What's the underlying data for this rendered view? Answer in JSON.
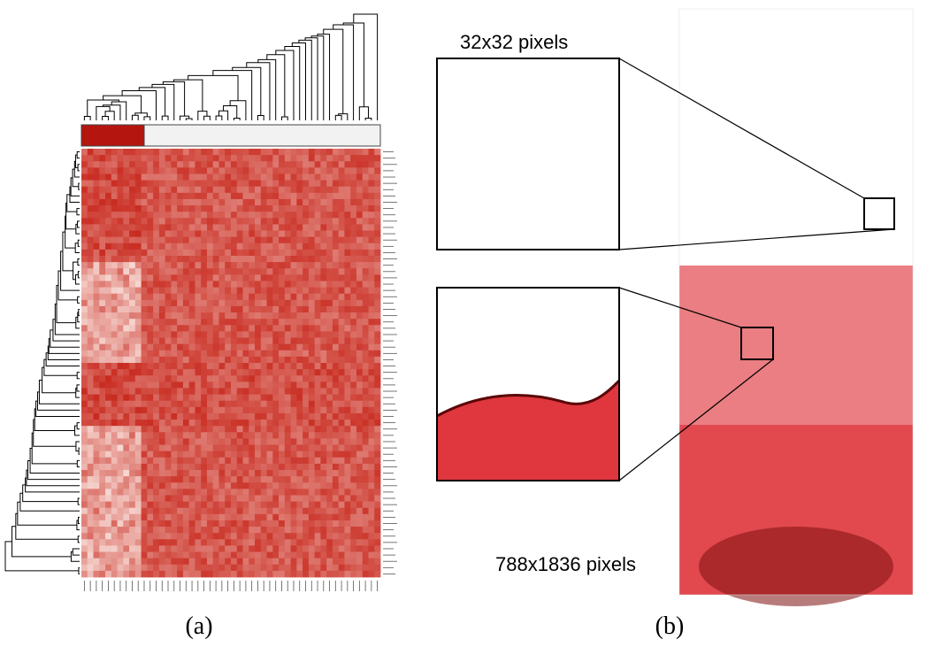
{
  "panel_a": {
    "caption": "(a)",
    "heatmap": {
      "rows": 68,
      "cols": 50,
      "low_color": "#f6d6d0",
      "high_color": "#c8281d"
    },
    "class_bar_colors": [
      "#b5150f",
      "#f2f2f2"
    ]
  },
  "panel_b": {
    "caption": "(b)",
    "patch_label": "32x32 pixels",
    "image_label": "788x1836 pixels",
    "accent_color": "#d9141b"
  }
}
